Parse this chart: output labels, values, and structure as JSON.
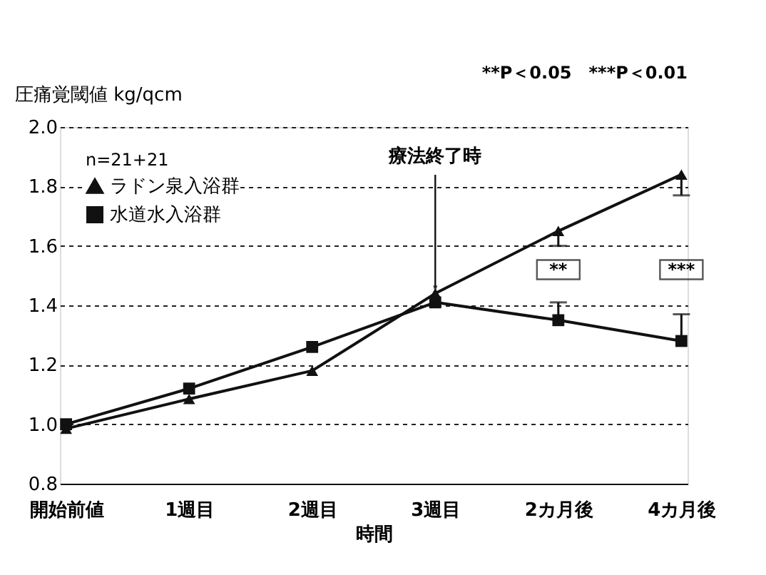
{
  "chart_data": {
    "type": "line",
    "categories": [
      "開始前値",
      "1週目",
      "2週目",
      "3週目",
      "2カ月後",
      "4カ月後"
    ],
    "series": [
      {
        "name": "ラドン泉入浴群",
        "color": "#111111",
        "marker": "triangle",
        "values": [
          0.985,
          1.085,
          1.18,
          1.44,
          1.65,
          1.84
        ],
        "errors": [
          null,
          null,
          null,
          null,
          [
            1.6,
            1.65
          ],
          [
            1.77,
            1.84
          ]
        ]
      },
      {
        "name": "水道水入浴群",
        "color": "#111111",
        "marker": "square",
        "values": [
          1.0,
          1.12,
          1.26,
          1.41,
          1.35,
          1.28
        ],
        "errors": [
          null,
          null,
          null,
          null,
          [
            1.35,
            1.41
          ],
          [
            1.28,
            1.37
          ]
        ]
      }
    ],
    "xlabel": "時間",
    "ylabel": "圧痛覚閾値 kg/qcm",
    "legend_title": "n=21+21",
    "legend": "top left",
    "ylim": [
      0.8,
      2.0
    ],
    "yticks": [
      0.8,
      {
        "value": 1,
        "label": "1.0"
      },
      1.2,
      1.4,
      1.6,
      1.8,
      {
        "value": 2,
        "label": "2.0"
      }
    ],
    "grid": "y",
    "line_style": "solid",
    "annotations": [
      "**P＜0.05　***P＜0.01",
      {
        "text": "療法終了時",
        "x": "3週目",
        "y": 1.43
      },
      {
        "text": "**",
        "x": "2カ月後",
        "y": 1.52
      },
      {
        "text": "***",
        "x": "4カ月後",
        "y": 1.52
      }
    ]
  }
}
